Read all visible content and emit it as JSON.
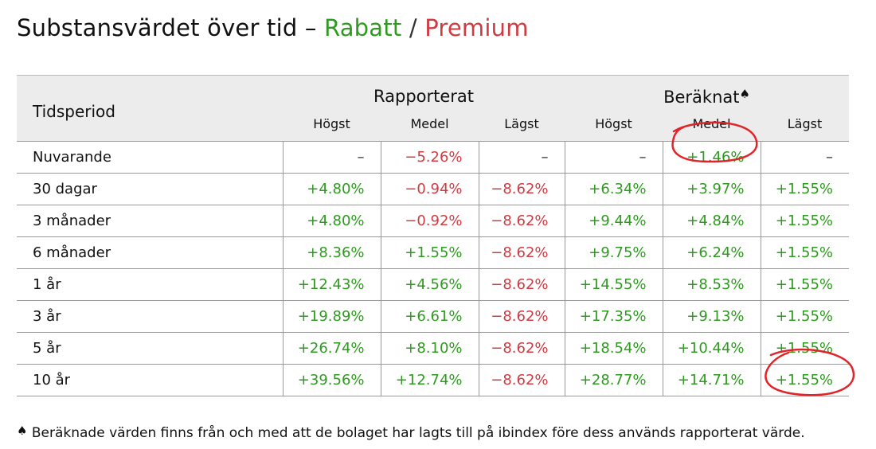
{
  "title": {
    "prefix": "Substansvärdet över tid –",
    "discount": "Rabatt",
    "separator": "/",
    "premium": "Premium"
  },
  "table": {
    "period_header": "Tidsperiod",
    "group_reported": "Rapporterat",
    "group_calculated": "Beräknat",
    "spade_symbol": "♠",
    "sub_headers": [
      "Högst",
      "Medel",
      "Lägst",
      "Högst",
      "Medel",
      "Lägst"
    ],
    "rows": [
      {
        "period": "Nuvarande",
        "cells": [
          "–",
          "−5.26%",
          "–",
          "–",
          "+1.46%",
          "–"
        ]
      },
      {
        "period": "30 dagar",
        "cells": [
          "+4.80%",
          "−0.94%",
          "−8.62%",
          "+6.34%",
          "+3.97%",
          "+1.55%"
        ]
      },
      {
        "period": "3 månader",
        "cells": [
          "+4.80%",
          "−0.92%",
          "−8.62%",
          "+9.44%",
          "+4.84%",
          "+1.55%"
        ]
      },
      {
        "period": "6 månader",
        "cells": [
          "+8.36%",
          "+1.55%",
          "−8.62%",
          "+9.75%",
          "+6.24%",
          "+1.55%"
        ]
      },
      {
        "period": "1 år",
        "cells": [
          "+12.43%",
          "+4.56%",
          "−8.62%",
          "+14.55%",
          "+8.53%",
          "+1.55%"
        ]
      },
      {
        "period": "3 år",
        "cells": [
          "+19.89%",
          "+6.61%",
          "−8.62%",
          "+17.35%",
          "+9.13%",
          "+1.55%"
        ]
      },
      {
        "period": "5 år",
        "cells": [
          "+26.74%",
          "+8.10%",
          "−8.62%",
          "+18.54%",
          "+10.44%",
          "+1.55%"
        ]
      },
      {
        "period": "10 år",
        "cells": [
          "+39.56%",
          "+12.74%",
          "−8.62%",
          "+28.77%",
          "+14.71%",
          "+1.55%"
        ]
      }
    ]
  },
  "footnote": {
    "symbol": "♠",
    "text": " Beräknade värden finns från och med att de bolaget har lagts till på ibindex före dess används rapporterat värde."
  },
  "colors": {
    "positive": "#2e9a1f",
    "negative": "#cf3b41",
    "annotation": "#e0242a",
    "header_bg": "#ececec"
  }
}
